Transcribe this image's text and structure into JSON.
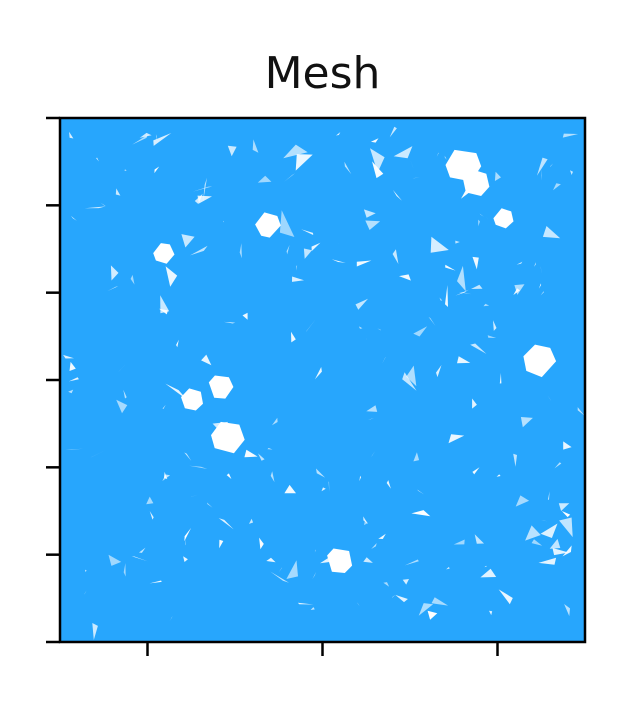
{
  "chart_data": {
    "type": "mesh",
    "title": "Mesh",
    "xlabel": "",
    "ylabel": "",
    "x_tick_count": 3,
    "y_tick_count": 7,
    "x_tick_labels": [],
    "y_tick_labels": [],
    "grid": false,
    "legend": "none",
    "mesh_color": "#27a6fd",
    "background_color": "#ffffff"
  }
}
